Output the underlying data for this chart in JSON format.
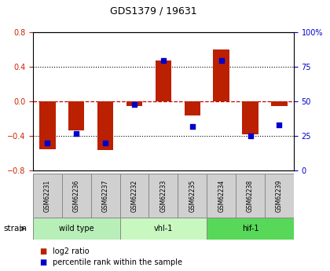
{
  "title": "GDS1379 / 19631",
  "samples": [
    "GSM62231",
    "GSM62236",
    "GSM62237",
    "GSM62232",
    "GSM62233",
    "GSM62235",
    "GSM62234",
    "GSM62238",
    "GSM62239"
  ],
  "log2_ratio": [
    -0.55,
    -0.33,
    -0.56,
    -0.05,
    0.48,
    -0.16,
    0.6,
    -0.38,
    -0.05
  ],
  "percentile_rank": [
    20,
    27,
    20,
    48,
    80,
    32,
    80,
    25,
    33
  ],
  "groups": [
    {
      "label": "wild type",
      "start": 0,
      "end": 3,
      "color": "#b8efb8"
    },
    {
      "label": "vhl-1",
      "start": 3,
      "end": 6,
      "color": "#c8f8c0"
    },
    {
      "label": "hif-1",
      "start": 6,
      "end": 9,
      "color": "#58d858"
    }
  ],
  "ylim_left": [
    -0.8,
    0.8
  ],
  "ylim_right": [
    0,
    100
  ],
  "bar_color_red": "#bb2000",
  "bar_color_blue": "#0000cc",
  "zero_line_color": "#cc0000",
  "grid_color": "#000000",
  "tick_color_left": "#cc2200",
  "tick_color_right": "#0000cc",
  "left_ticks": [
    -0.8,
    -0.4,
    0.0,
    0.4,
    0.8
  ],
  "right_ticks": [
    0,
    25,
    50,
    75,
    100
  ],
  "sample_box_color": "#d0d0d0",
  "strain_label": "strain",
  "legend_red": "log2 ratio",
  "legend_blue": "percentile rank within the sample"
}
